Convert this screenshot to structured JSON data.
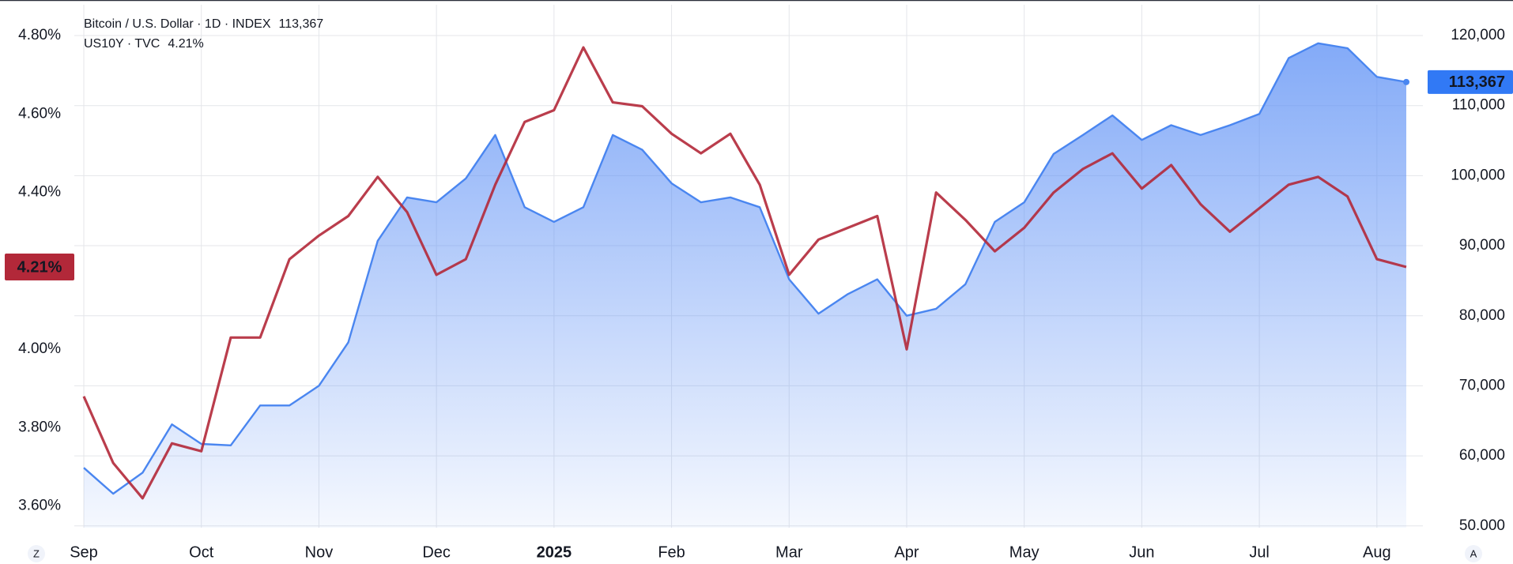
{
  "chart_data": {
    "type": "line",
    "categories": [
      "Sep",
      null,
      null,
      null,
      "Oct",
      null,
      null,
      null,
      "Nov",
      null,
      null,
      null,
      "Dec",
      null,
      null,
      null,
      "2025",
      null,
      null,
      null,
      "Feb",
      null,
      null,
      null,
      "Mar",
      null,
      null,
      null,
      "Apr",
      null,
      null,
      null,
      "May",
      null,
      null,
      null,
      "Jun",
      null,
      null,
      null,
      "Jul",
      null,
      null,
      null,
      "Aug",
      null
    ],
    "series": [
      {
        "name": "Bitcoin / U.S. Dollar · 1D · INDEX",
        "legend_value": "113,367",
        "color": "#4a86f0",
        "axis": "y2",
        "area": true,
        "values": [
          58300,
          54600,
          57600,
          64500,
          61700,
          61500,
          67200,
          67200,
          70000,
          76200,
          90700,
          96900,
          96200,
          99600,
          105800,
          95500,
          93400,
          95500,
          105800,
          103700,
          98900,
          96200,
          96900,
          95500,
          85200,
          80300,
          83100,
          85200,
          80000,
          81000,
          84500,
          93400,
          96200,
          103100,
          105800,
          108600,
          105100,
          107200,
          105800,
          107200,
          108800,
          116800,
          118900,
          118200,
          114100,
          113367
        ]
      },
      {
        "name": "US10Y · TVC",
        "legend_value": "4.21%",
        "color": "#b22839",
        "axis": "y",
        "values": [
          3.88,
          3.71,
          3.62,
          3.76,
          3.74,
          4.03,
          4.03,
          4.23,
          4.29,
          4.34,
          4.44,
          4.35,
          4.19,
          4.23,
          4.42,
          4.58,
          4.61,
          4.77,
          4.63,
          4.62,
          4.55,
          4.5,
          4.55,
          4.42,
          4.19,
          4.28,
          4.31,
          4.34,
          4.0,
          4.4,
          4.33,
          4.25,
          4.31,
          4.4,
          4.46,
          4.5,
          4.41,
          4.47,
          4.37,
          4.3,
          4.36,
          4.42,
          4.44,
          4.39,
          4.23,
          4.21
        ]
      }
    ],
    "ylim": [
      3.545,
      4.879
    ],
    "yticks": [
      {
        "value": 3.6,
        "label": "3.60%"
      },
      {
        "value": 3.8,
        "label": "3.80%"
      },
      {
        "value": 4.0,
        "label": "4.00%"
      },
      {
        "value": 4.4,
        "label": "4.40%"
      },
      {
        "value": 4.6,
        "label": "4.60%"
      },
      {
        "value": 4.8,
        "label": "4.80%"
      }
    ],
    "y2lim": [
      49750,
      124400
    ],
    "y2ticks": [
      {
        "value": 50000,
        "label": "50.000"
      },
      {
        "value": 60000,
        "label": "60,000"
      },
      {
        "value": 70000,
        "label": "70,000"
      },
      {
        "value": 80000,
        "label": "80,000"
      },
      {
        "value": 90000,
        "label": "90,000"
      },
      {
        "value": 100000,
        "label": "100,000"
      },
      {
        "value": 110000,
        "label": "110,000"
      },
      {
        "value": 120000,
        "label": "120,000"
      }
    ],
    "grid": true,
    "buttons": [
      "Z",
      "A"
    ]
  }
}
